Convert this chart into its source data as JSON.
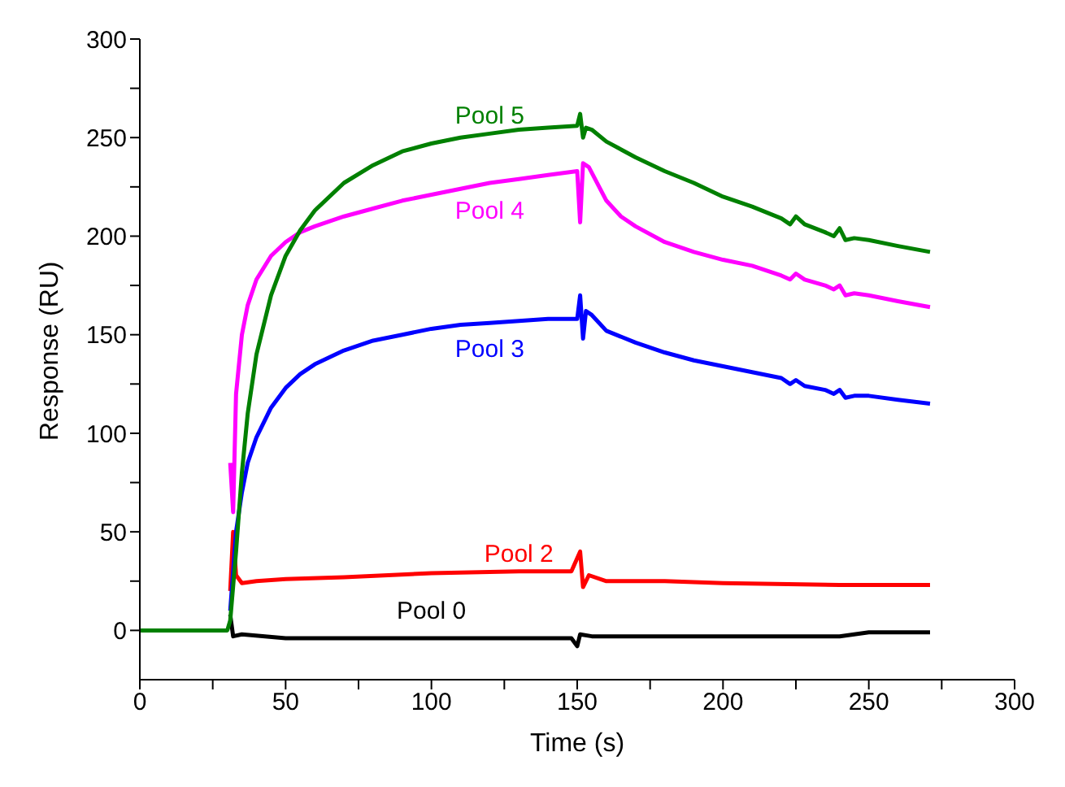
{
  "chart_data": {
    "type": "line",
    "xlabel": "Time (s)",
    "ylabel": "Response (RU)",
    "xlim": [
      0,
      300
    ],
    "ylim": [
      -25,
      300
    ],
    "xticks": [
      0,
      {
        "value": 25,
        "label": null
      },
      50,
      {
        "value": 75,
        "label": null
      },
      100,
      {
        "value": 125,
        "label": null
      },
      150,
      {
        "value": 175,
        "label": null
      },
      200,
      {
        "value": 225,
        "label": null
      },
      250,
      {
        "value": 275,
        "label": null
      },
      300
    ],
    "yticks": [
      0,
      {
        "value": 25,
        "label": null
      },
      50,
      {
        "value": 75,
        "label": null
      },
      100,
      {
        "value": 125,
        "label": null
      },
      150,
      {
        "value": 175,
        "label": null
      },
      200,
      {
        "value": 225,
        "label": null
      },
      250,
      {
        "value": 275,
        "label": null
      },
      300
    ],
    "grid": false,
    "legend": false,
    "marker": "none",
    "line_style": "solid",
    "series": [
      {
        "name": "Pool 0",
        "color": "#000000",
        "x": [
          31,
          32,
          35,
          50,
          100,
          148,
          150,
          151,
          155,
          200,
          240,
          250,
          271
        ],
        "values": [
          8,
          -3,
          -2,
          -4,
          -4,
          -4,
          -8,
          -2,
          -3,
          -3,
          -3,
          -1,
          -1
        ]
      },
      {
        "name": "Pool 2",
        "color": "#ff0000",
        "x": [
          31,
          32,
          33,
          35,
          40,
          50,
          70,
          100,
          130,
          148,
          151,
          152,
          154,
          160,
          180,
          200,
          240,
          271
        ],
        "values": [
          20,
          50,
          28,
          24,
          25,
          26,
          27,
          29,
          30,
          30,
          40,
          22,
          28,
          25,
          25,
          24,
          23,
          23
        ]
      },
      {
        "name": "Pool 3",
        "color": "#0000ff",
        "x": [
          31,
          33,
          35,
          37,
          40,
          45,
          50,
          55,
          60,
          70,
          80,
          90,
          100,
          110,
          120,
          130,
          140,
          150,
          151,
          152,
          153,
          155,
          160,
          170,
          180,
          190,
          200,
          210,
          220,
          223,
          225,
          228,
          235,
          238,
          240,
          242,
          245,
          250,
          260,
          271
        ],
        "values": [
          10,
          50,
          70,
          85,
          98,
          113,
          123,
          130,
          135,
          142,
          147,
          150,
          153,
          155,
          156,
          157,
          158,
          158,
          170,
          148,
          162,
          160,
          152,
          146,
          141,
          137,
          134,
          131,
          128,
          125,
          127,
          124,
          122,
          120,
          122,
          118,
          119,
          119,
          117,
          115
        ]
      },
      {
        "name": "Pool 4",
        "color": "#ff00ff",
        "x": [
          31,
          32,
          33,
          35,
          37,
          40,
          45,
          50,
          55,
          60,
          70,
          80,
          90,
          100,
          110,
          120,
          130,
          140,
          150,
          151,
          152,
          154,
          160,
          165,
          170,
          180,
          190,
          200,
          210,
          220,
          223,
          225,
          228,
          235,
          238,
          240,
          242,
          245,
          250,
          260,
          271
        ],
        "values": [
          85,
          60,
          120,
          150,
          165,
          178,
          190,
          197,
          202,
          205,
          210,
          214,
          218,
          221,
          224,
          227,
          229,
          231,
          233,
          207,
          237,
          235,
          218,
          210,
          205,
          197,
          192,
          188,
          185,
          180,
          178,
          181,
          178,
          175,
          173,
          175,
          170,
          171,
          170,
          167,
          164
        ]
      },
      {
        "name": "Pool 5",
        "color": "#008000",
        "x": [
          0,
          10,
          20,
          29,
          30,
          31,
          33,
          35,
          37,
          40,
          45,
          50,
          55,
          60,
          70,
          80,
          90,
          100,
          110,
          120,
          130,
          140,
          150,
          151,
          152,
          153,
          155,
          160,
          170,
          180,
          190,
          200,
          210,
          220,
          223,
          225,
          228,
          235,
          238,
          240,
          242,
          245,
          250,
          260,
          271
        ],
        "values": [
          0,
          0,
          0,
          0,
          0,
          5,
          40,
          80,
          110,
          140,
          170,
          190,
          203,
          213,
          227,
          236,
          243,
          247,
          250,
          252,
          254,
          255,
          256,
          262,
          250,
          255,
          254,
          248,
          240,
          233,
          227,
          220,
          215,
          209,
          206,
          210,
          206,
          202,
          200,
          204,
          198,
          199,
          198,
          195,
          192
        ]
      }
    ]
  }
}
